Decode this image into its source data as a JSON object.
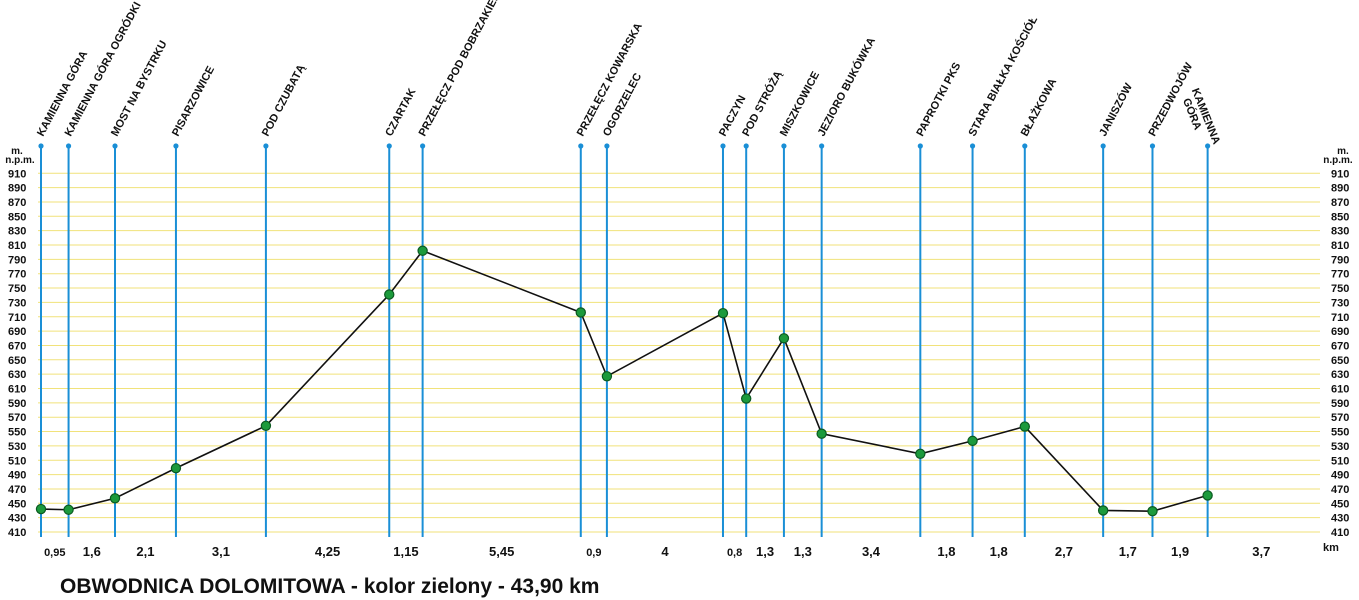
{
  "chart_data": {
    "type": "line",
    "title": "OBWODNICA DOLOMITOWA - kolor zielony - 43,90 km",
    "ylabel": "m. n.p.m.",
    "xlabel": "km",
    "ylim": [
      410,
      920
    ],
    "yticks": [
      410,
      430,
      450,
      470,
      490,
      510,
      530,
      550,
      570,
      590,
      610,
      630,
      650,
      670,
      690,
      710,
      730,
      750,
      770,
      790,
      810,
      830,
      850,
      870,
      890,
      910
    ],
    "grid": true,
    "places": [
      {
        "name": "KAMIENNA GÓRA",
        "elevation": 442
      },
      {
        "name": "KAMIENNA GÓRA OGRÓDKI",
        "elevation": 441
      },
      {
        "name": "MOST NA BYSTRKU",
        "elevation": 457
      },
      {
        "name": "PISARZOWICE",
        "elevation": 499
      },
      {
        "name": "POD CZUBATĄ",
        "elevation": 558
      },
      {
        "name": "CZARTAK",
        "elevation": 741
      },
      {
        "name": "PRZEŁĘCZ POD BOBRZAKIEM",
        "elevation": 802
      },
      {
        "name": "PRZEŁĘCZ KOWARSKA",
        "elevation": 716
      },
      {
        "name": "OGORZELEC",
        "elevation": 627
      },
      {
        "name": "PACZYN",
        "elevation": 715
      },
      {
        "name": "POD STRÓŻĄ",
        "elevation": 596
      },
      {
        "name": "MISZKOWICE",
        "elevation": 680
      },
      {
        "name": "JEZIORO BUKÓWKA",
        "elevation": 547
      },
      {
        "name": "PAPROTKI PKS",
        "elevation": 519
      },
      {
        "name": "STARA BIAŁKA KOŚCIÓŁ",
        "elevation": 537
      },
      {
        "name": "BŁAŻKOWA",
        "elevation": 557
      },
      {
        "name": "JANISZÓW",
        "elevation": 440
      },
      {
        "name": "PRZEDWOJÓW",
        "elevation": 439
      },
      {
        "name": "KAMIENNA GÓRA",
        "elevation": 461
      }
    ],
    "segments": [
      "0,95",
      "1,6",
      "2,1",
      "3,1",
      "4,25",
      "1,15",
      "5,45",
      "0,9",
      "4",
      "0,8",
      "1,3",
      "1,3",
      "3,4",
      "1,8",
      "1,8",
      "2,7",
      "1,7",
      "1,9",
      "3,7"
    ],
    "colors": {
      "line": "#111111",
      "marker": "#1c9a3c",
      "marker_edge": "#0b5a20",
      "vertical": "#1a8fd6",
      "grid": "#f1e27a"
    }
  }
}
